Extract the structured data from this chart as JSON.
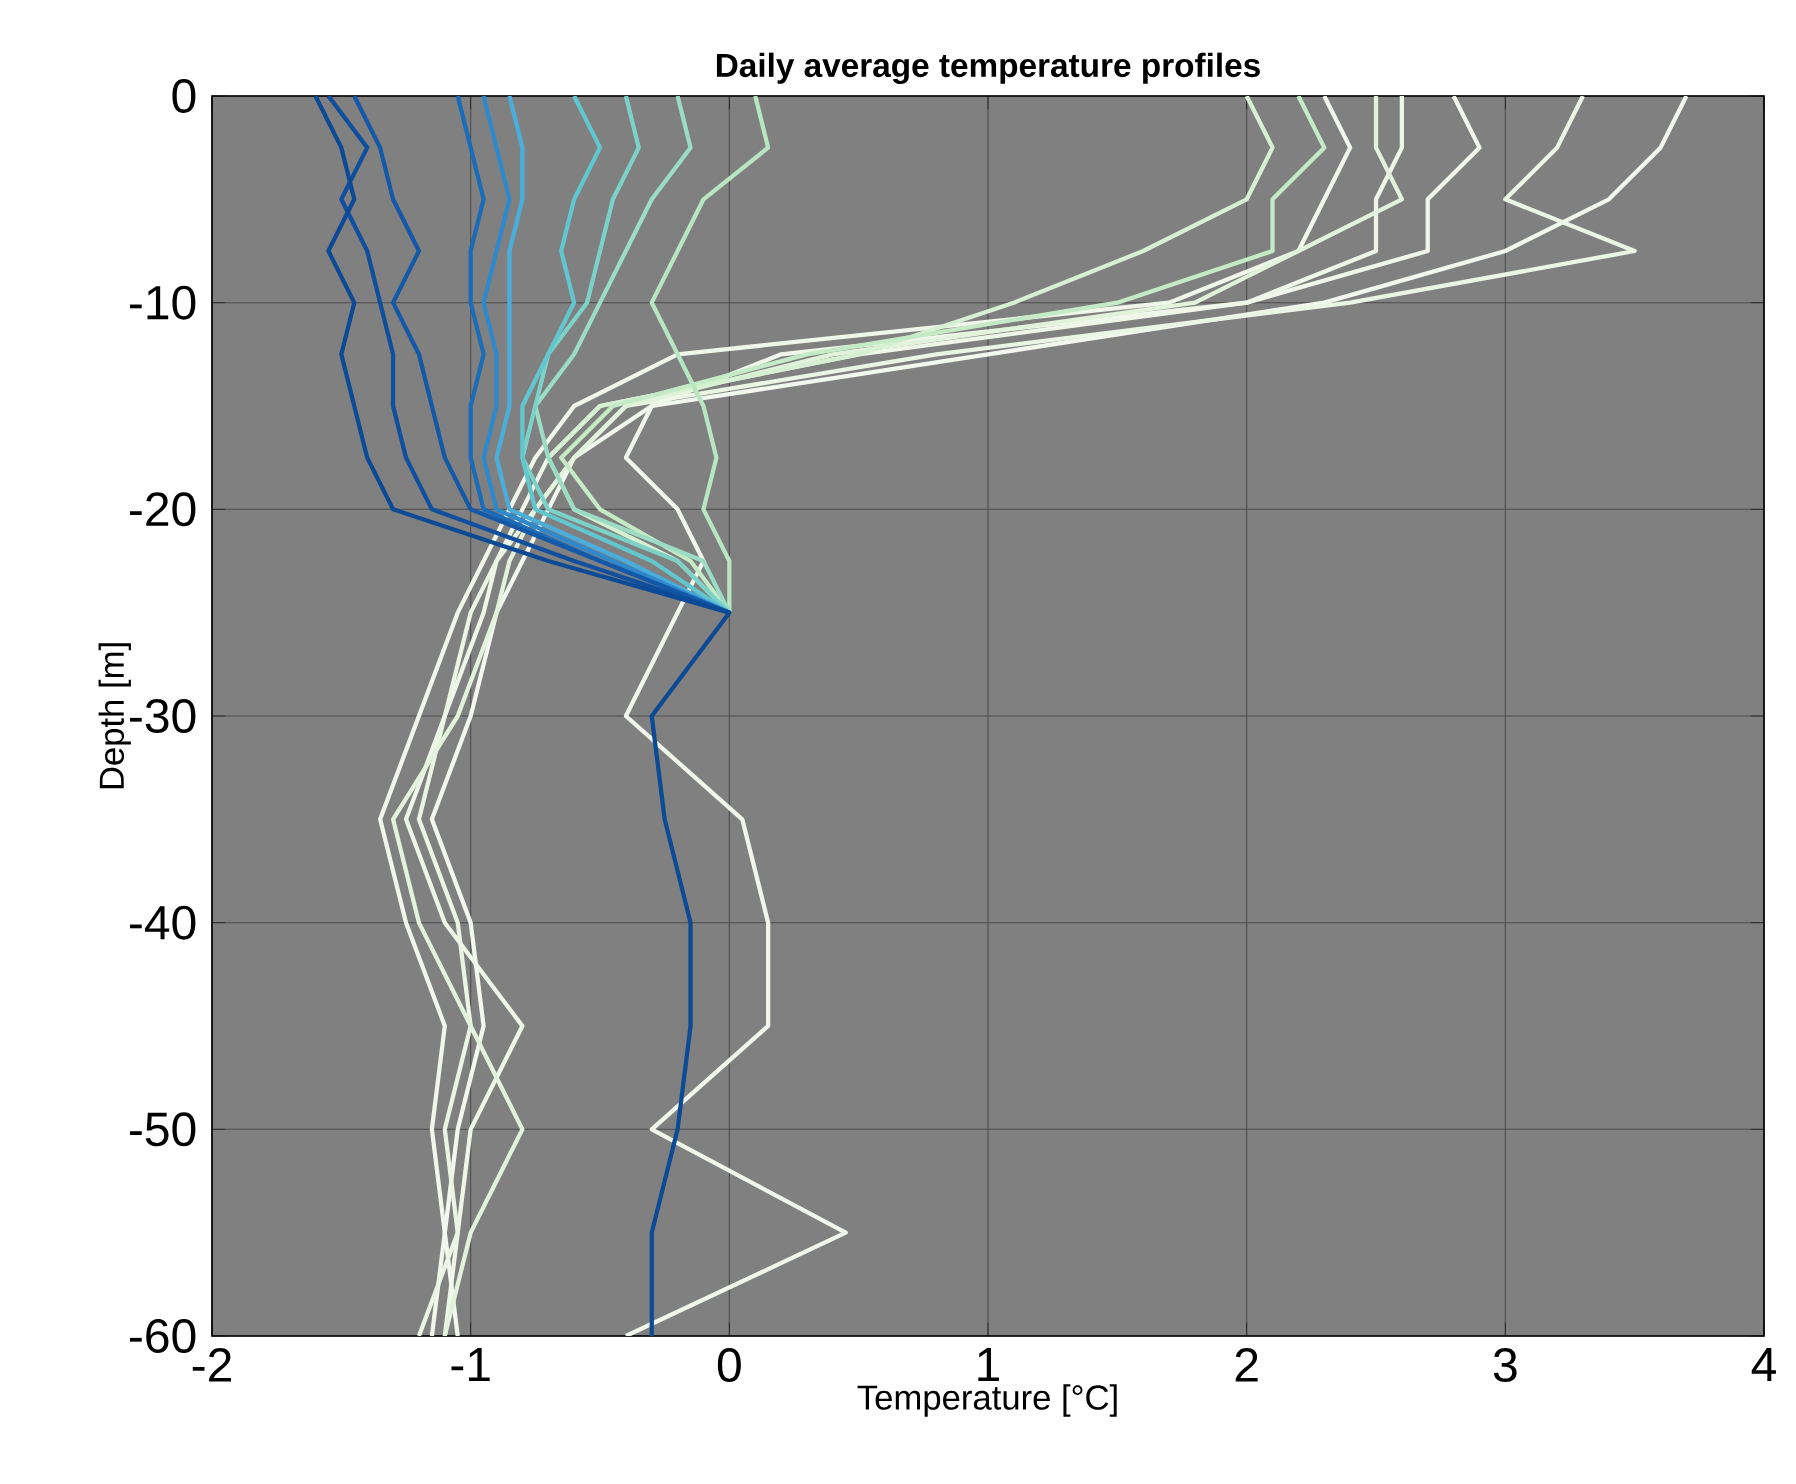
{
  "chart_data": {
    "type": "line",
    "title": "Daily average temperature profiles",
    "xlabel": "Temperature [°C]",
    "ylabel": "Depth [m]",
    "xlim": [
      -2,
      4
    ],
    "ylim": [
      -60,
      0
    ],
    "xticks": [
      -2,
      -1,
      0,
      1,
      2,
      3,
      4
    ],
    "yticks": [
      -60,
      -50,
      -40,
      -30,
      -20,
      -10,
      0
    ],
    "grid": true,
    "marker": "none",
    "line_style": "solid",
    "series": [
      {
        "color": "#f0f7ea",
        "x": [
          2.3,
          2.4,
          2.3,
          2.2,
          1.7,
          -0.2,
          -0.6,
          -0.75,
          -0.85,
          -0.95,
          -1.05,
          -1.2,
          -1.35,
          -1.25,
          -1.1,
          -1.15,
          -1.1,
          -1.15
        ],
        "values": [
          0,
          -2.5,
          -5,
          -7.5,
          -10,
          -12.5,
          -15,
          -17.5,
          -20,
          -22.5,
          -25,
          -30,
          -35,
          -40,
          -45,
          -50,
          -55,
          -60
        ]
      },
      {
        "color": "#eef6e8",
        "x": [
          2.6,
          2.6,
          2.5,
          2.5,
          2.0,
          0.5,
          -0.5,
          -0.7,
          -0.8,
          -0.9,
          -0.95,
          -1.1,
          -1.25,
          -1.1,
          -0.8,
          -1.0,
          -1.05,
          -1.1
        ],
        "values": [
          0,
          -2.5,
          -5,
          -7.5,
          -10,
          -12.5,
          -15,
          -17.5,
          -20,
          -22.5,
          -25,
          -30,
          -35,
          -40,
          -45,
          -50,
          -55,
          -60
        ]
      },
      {
        "color": "#f2f8ee",
        "x": [
          3.7,
          3.6,
          3.4,
          3.0,
          2.3,
          1.0,
          -0.3,
          -0.6,
          -0.7,
          -0.8,
          -0.9,
          -1.0,
          -1.15,
          -1.0,
          -0.95,
          -1.05,
          -1.1,
          -1.05
        ],
        "values": [
          0,
          -2.5,
          -5,
          -7.5,
          -10,
          -12.5,
          -15,
          -17.5,
          -20,
          -22.5,
          -25,
          -30,
          -35,
          -40,
          -45,
          -50,
          -55,
          -60
        ]
      },
      {
        "color": "#eaf5e4",
        "x": [
          3.3,
          3.2,
          3.0,
          3.5,
          2.4,
          0.8,
          -0.4,
          -0.6,
          -0.75,
          -0.9,
          -1.0,
          -1.1,
          -1.2,
          -1.05,
          -1.0,
          -1.1,
          -1.05,
          -1.2
        ],
        "values": [
          0,
          -2.5,
          -5,
          -7.5,
          -10,
          -12.5,
          -15,
          -17.5,
          -20,
          -22.5,
          -25,
          -30,
          -35,
          -40,
          -45,
          -50,
          -55,
          -60
        ]
      },
      {
        "color": "#f0f7ea",
        "x": [
          2.8,
          2.9,
          2.7,
          2.7,
          2.0,
          0.2,
          -0.3,
          -0.4,
          -0.2,
          -0.1,
          -0.2,
          -0.4,
          0.05,
          0.15,
          0.15,
          -0.3,
          0.45,
          -0.4
        ],
        "values": [
          0,
          -2.5,
          -5,
          -7.5,
          -10,
          -12.5,
          -15,
          -17.5,
          -20,
          -22.5,
          -25,
          -30,
          -35,
          -40,
          -45,
          -50,
          -55,
          -60
        ]
      },
      {
        "color": "#e2f3dc",
        "x": [
          2.5,
          2.5,
          2.6,
          2.2,
          1.8,
          0.4,
          -0.4,
          -0.6,
          -0.75,
          -0.85,
          -0.9,
          -1.05,
          -1.3,
          -1.2,
          -1.0,
          -0.8,
          -1.0,
          -1.1
        ],
        "values": [
          0,
          -2.5,
          -5,
          -7.5,
          -10,
          -12.5,
          -15,
          -17.5,
          -20,
          -22.5,
          -25,
          -30,
          -35,
          -40,
          -45,
          -50,
          -55,
          -60
        ]
      },
      {
        "color": "#d6f0d2",
        "x": [
          2.0,
          2.1,
          2.0,
          1.6,
          1.1,
          0.5,
          -0.5,
          -0.7,
          -0.6,
          -0.2,
          0
        ],
        "values": [
          0,
          -2.5,
          -5,
          -7.5,
          -10,
          -12.5,
          -15,
          -17.5,
          -20,
          -22.5,
          -25
        ]
      },
      {
        "color": "#c4ebc6",
        "x": [
          2.2,
          2.3,
          2.1,
          2.1,
          1.5,
          0.3,
          -0.45,
          -0.65,
          -0.5,
          -0.15,
          0
        ],
        "values": [
          0,
          -2.5,
          -5,
          -7.5,
          -10,
          -12.5,
          -15,
          -17.5,
          -20,
          -22.5,
          -25
        ]
      },
      {
        "color": "#b8e6c0",
        "x": [
          0.1,
          0.15,
          -0.1,
          -0.2,
          -0.3,
          -0.2,
          -0.1,
          -0.05,
          -0.1,
          0.0,
          0
        ],
        "values": [
          0,
          -2.5,
          -5,
          -7.5,
          -10,
          -12.5,
          -15,
          -17.5,
          -20,
          -22.5,
          -25
        ]
      },
      {
        "color": "#9adcc4",
        "x": [
          -0.2,
          -0.15,
          -0.3,
          -0.4,
          -0.5,
          -0.6,
          -0.75,
          -0.7,
          -0.6,
          -0.1,
          0
        ],
        "values": [
          0,
          -2.5,
          -5,
          -7.5,
          -10,
          -12.5,
          -15,
          -17.5,
          -20,
          -22.5,
          -25
        ]
      },
      {
        "color": "#7cd2c8",
        "x": [
          -0.4,
          -0.35,
          -0.45,
          -0.5,
          -0.55,
          -0.7,
          -0.75,
          -0.8,
          -0.7,
          -0.2,
          0
        ],
        "values": [
          0,
          -2.5,
          -5,
          -7.5,
          -10,
          -12.5,
          -15,
          -17.5,
          -20,
          -22.5,
          -25
        ]
      },
      {
        "color": "#62c6ce",
        "x": [
          -0.6,
          -0.5,
          -0.6,
          -0.65,
          -0.6,
          -0.7,
          -0.8,
          -0.8,
          -0.75,
          -0.3,
          0
        ],
        "values": [
          0,
          -2.5,
          -5,
          -7.5,
          -10,
          -12.5,
          -15,
          -17.5,
          -20,
          -22.5,
          -25
        ]
      },
      {
        "color": "#4aaedc",
        "x": [
          -0.85,
          -0.8,
          -0.8,
          -0.85,
          -0.85,
          -0.85,
          -0.85,
          -0.9,
          -0.85,
          -0.4,
          0
        ],
        "values": [
          0,
          -2.5,
          -5,
          -7.5,
          -10,
          -12.5,
          -15,
          -17.5,
          -20,
          -22.5,
          -25
        ]
      },
      {
        "color": "#2e88cc",
        "x": [
          -0.95,
          -0.9,
          -0.85,
          -0.9,
          -0.95,
          -0.9,
          -0.9,
          -0.95,
          -0.9,
          -0.45,
          0
        ],
        "values": [
          0,
          -2.5,
          -5,
          -7.5,
          -10,
          -12.5,
          -15,
          -17.5,
          -20,
          -22.5,
          -25
        ]
      },
      {
        "color": "#1a6cb8",
        "x": [
          -1.05,
          -1.0,
          -0.95,
          -1.0,
          -1.0,
          -0.95,
          -1.0,
          -1.0,
          -0.95,
          -0.5,
          0
        ],
        "values": [
          0,
          -2.5,
          -5,
          -7.5,
          -10,
          -12.5,
          -15,
          -17.5,
          -20,
          -22.5,
          -25
        ]
      },
      {
        "color": "#1458a8",
        "x": [
          -1.45,
          -1.35,
          -1.3,
          -1.2,
          -1.3,
          -1.2,
          -1.15,
          -1.1,
          -1.0,
          -0.5,
          0
        ],
        "values": [
          0,
          -2.5,
          -5,
          -7.5,
          -10,
          -12.5,
          -15,
          -17.5,
          -20,
          -22.5,
          -25
        ]
      },
      {
        "color": "#0f4f9e",
        "x": [
          -1.55,
          -1.4,
          -1.5,
          -1.4,
          -1.35,
          -1.3,
          -1.3,
          -1.25,
          -1.15,
          -0.6,
          0
        ],
        "values": [
          0,
          -2.5,
          -5,
          -7.5,
          -10,
          -12.5,
          -15,
          -17.5,
          -20,
          -22.5,
          -25
        ]
      },
      {
        "color": "#0c4a95",
        "x": [
          -1.6,
          -1.5,
          -1.45,
          -1.55,
          -1.45,
          -1.5,
          -1.45,
          -1.4,
          -1.3,
          -0.7,
          0,
          -0.3,
          -0.25,
          -0.15,
          -0.15,
          -0.2,
          -0.3,
          -0.3
        ],
        "values": [
          0,
          -2.5,
          -5,
          -7.5,
          -10,
          -12.5,
          -15,
          -17.5,
          -20,
          -22.5,
          -25,
          -30,
          -35,
          -40,
          -45,
          -50,
          -55,
          -60
        ]
      }
    ]
  }
}
